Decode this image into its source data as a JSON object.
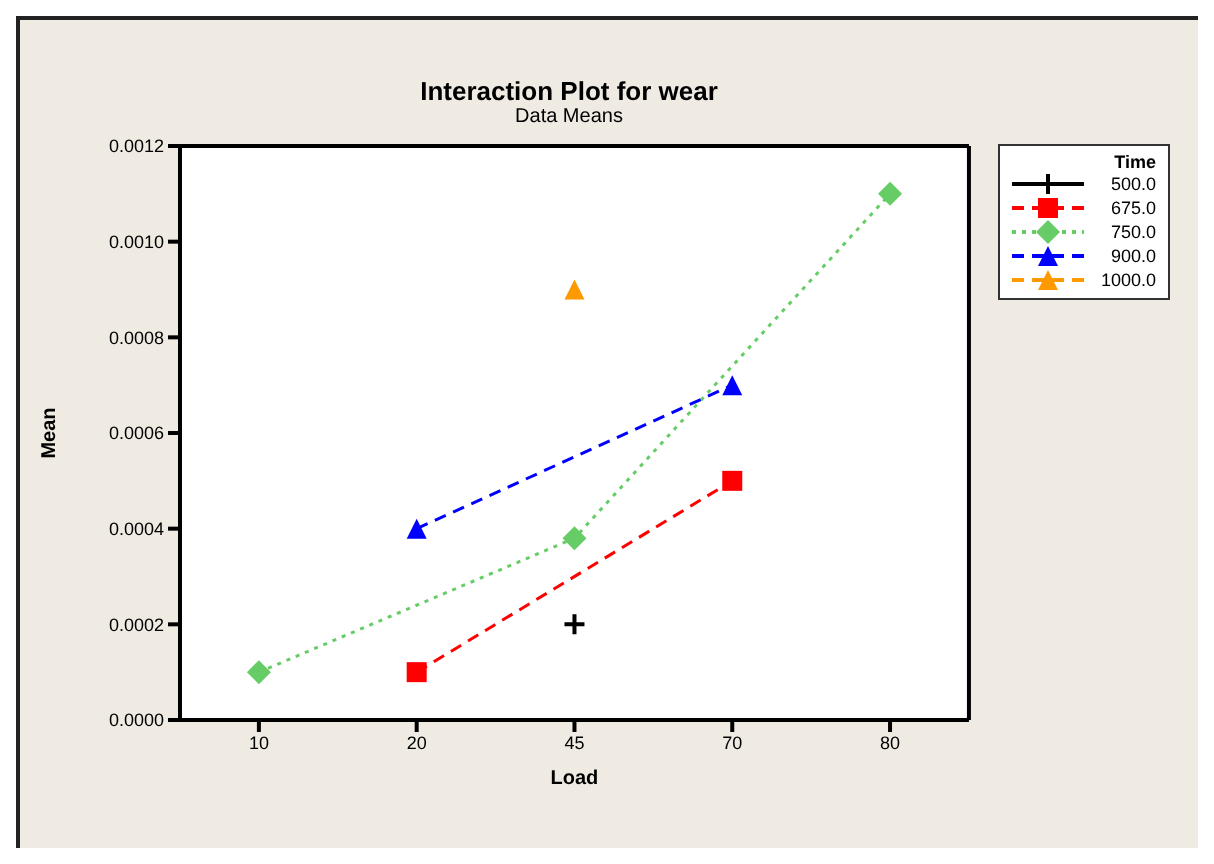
{
  "chart_data": {
    "type": "line",
    "title": "Interaction Plot for wear",
    "subtitle": "Data Means",
    "xlabel": "Load",
    "ylabel": "Mean",
    "legend_title": "Time",
    "categories": [
      "10",
      "20",
      "45",
      "70",
      "80"
    ],
    "series": [
      {
        "name": "500.0",
        "color": "#000000",
        "values": [
          null,
          null,
          0.0002,
          null,
          null
        ],
        "marker": "cross",
        "line_style": "solid"
      },
      {
        "name": "675.0",
        "color": "#ff0000",
        "values": [
          null,
          0.0001,
          null,
          0.0005,
          null
        ],
        "marker": "square",
        "line_style": "dashed"
      },
      {
        "name": "750.0",
        "color": "#66cc66",
        "values": [
          0.0001,
          null,
          0.00038,
          null,
          0.0011
        ],
        "marker": "diamond",
        "line_style": "dotted"
      },
      {
        "name": "900.0",
        "color": "#0000ff",
        "values": [
          null,
          0.0004,
          null,
          0.0007,
          null
        ],
        "marker": "triangle",
        "line_style": "dashed"
      },
      {
        "name": "1000.0",
        "color": "#ff9900",
        "values": [
          null,
          null,
          0.0009,
          null,
          null
        ],
        "marker": "triangle",
        "line_style": "dashed"
      }
    ],
    "ylim": [
      0,
      0.0012
    ],
    "yticks": [
      {
        "value": 0,
        "label": "0.0000"
      },
      {
        "value": 0.0002,
        "label": "0.0002"
      },
      {
        "value": 0.0004,
        "label": "0.0004"
      },
      {
        "value": 0.0006,
        "label": "0.0006"
      },
      {
        "value": 0.0008,
        "label": "0.0008"
      },
      {
        "value": 0.001,
        "label": "0.0010"
      },
      {
        "value": 0.0012,
        "label": "0.0012"
      }
    ],
    "grid": false,
    "legend": "right"
  }
}
